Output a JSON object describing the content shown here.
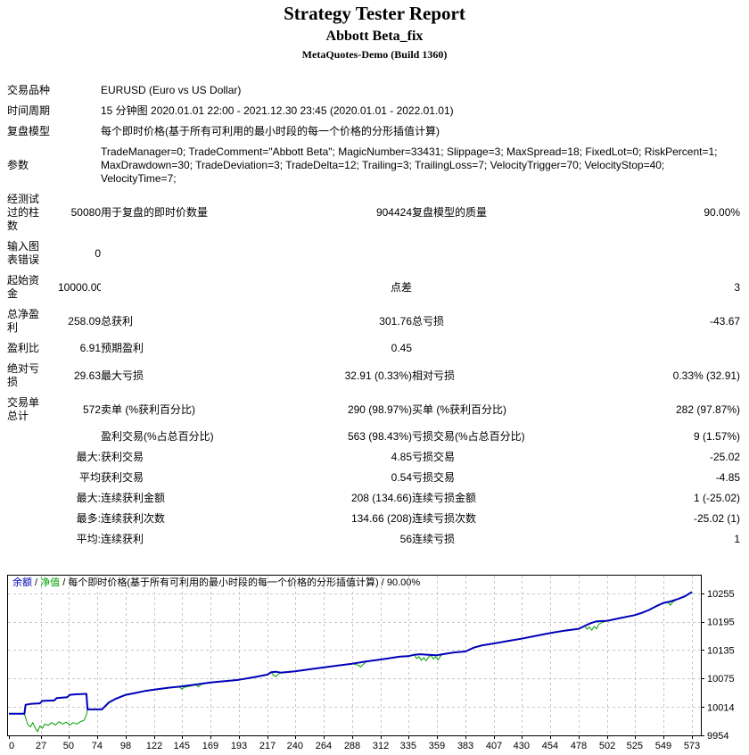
{
  "header": {
    "title": "Strategy Tester Report",
    "subtitle": "Abbott Beta_fix",
    "server": "MetaQuotes-Demo (Build 1360)"
  },
  "report": {
    "rows": [
      {
        "wide": true,
        "cells": [
          "交易品种",
          "",
          "EURUSD (Euro vs US Dollar)"
        ]
      },
      {
        "wide": true,
        "cells": [
          "时间周期",
          "",
          "15 分钟图 2020.01.01 22:00 - 2021.12.30 23:45 (2020.01.01 - 2022.01.01)"
        ]
      },
      {
        "wide": true,
        "cells": [
          "复盘模型",
          "",
          "每个即时价格(基于所有可利用的最小时段的每一个价格的分形插值计算)"
        ]
      },
      {
        "wide": true,
        "cells": [
          "参数",
          "",
          "TradeManager=0; TradeComment=\"Abbott Beta\"; MagicNumber=33431; Slippage=3; MaxSpread=18; FixedLot=0; RiskPercent=1; MaxDrawdown=30; TradeDeviation=3; TradeDelta=12; Trailing=3; TrailingLoss=7; VelocityTrigger=70; VelocityStop=40; VelocityTime=7;"
        ]
      },
      {
        "wide": false,
        "cells": [
          "经测试\n过的柱\n数",
          "50080",
          "用于复盘的即时价数量",
          "904424",
          "复盘模型的质量",
          "90.00%"
        ]
      },
      {
        "wide": false,
        "cells": [
          "输入图\n表错误",
          "0",
          "",
          "",
          "",
          ""
        ]
      },
      {
        "wide": false,
        "cells": [
          "起始资\n金",
          "10000.00",
          "",
          "点差",
          "",
          "3"
        ]
      },
      {
        "wide": false,
        "cells": [
          "总净盈\n利",
          "258.09",
          "总获利",
          "301.76",
          "总亏损",
          "-43.67"
        ]
      },
      {
        "wide": false,
        "cells": [
          "盈利比",
          "6.91",
          "预期盈利",
          "0.45",
          "",
          ""
        ]
      },
      {
        "wide": false,
        "cells": [
          "绝对亏\n损",
          "29.63",
          "最大亏损",
          "32.91 (0.33%)",
          "相对亏损",
          "0.33% (32.91)"
        ]
      },
      {
        "wide": false,
        "cells": [
          "交易单\n总计",
          "572",
          "卖单 (%获利百分比)",
          "290 (98.97%)",
          "买单 (%获利百分比)",
          "282 (97.87%)"
        ]
      },
      {
        "wide": false,
        "cells": [
          "",
          "",
          "盈利交易(%占总百分比)",
          "563 (98.43%)",
          "亏损交易(%占总百分比)",
          "9 (1.57%)"
        ]
      },
      {
        "wide": false,
        "cells": [
          "",
          "最大:",
          "获利交易",
          "4.85",
          "亏损交易",
          "-25.02"
        ]
      },
      {
        "wide": false,
        "cells": [
          "",
          "平均",
          "获利交易",
          "0.54",
          "亏损交易",
          "-4.85"
        ]
      },
      {
        "wide": false,
        "cells": [
          "",
          "最大:",
          "连续获利金额",
          "208 (134.66)",
          "连续亏损金额",
          "1 (-25.02)"
        ]
      },
      {
        "wide": false,
        "cells": [
          "",
          "最多:",
          "连续获利次数",
          "134.66 (208)",
          "连续亏损次数",
          "-25.02 (1)"
        ]
      },
      {
        "wide": false,
        "cells": [
          "",
          "平均:",
          "连续获利",
          "56",
          "连续亏损",
          "1"
        ]
      }
    ]
  },
  "chart_data": {
    "type": "line",
    "legend": {
      "balance_label": "余额",
      "equity_label": "净值",
      "model_label": "每个即时价格(基于所有可利用的最小时段的每一个价格的分形插值计算)",
      "quality": "90.00%",
      "separator": " / "
    },
    "xlabel": "",
    "ylabel": "",
    "x_ticks": [
      0,
      27,
      50,
      74,
      98,
      122,
      145,
      169,
      193,
      217,
      240,
      264,
      288,
      312,
      335,
      359,
      383,
      407,
      430,
      454,
      478,
      502,
      525,
      549,
      573
    ],
    "y_ticks": [
      10255,
      10195,
      10135,
      10075,
      10014,
      9954
    ],
    "xlim": [
      0,
      580
    ],
    "ylim": [
      9954,
      10295
    ],
    "grid": true,
    "colors": {
      "balance": "#0000B8",
      "equity": "#00A000",
      "grid": "#c8c8c8",
      "border": "#000000"
    },
    "series": [
      {
        "name": "equity",
        "label": "净值",
        "width": 1,
        "points": [
          [
            0,
            10000
          ],
          [
            13,
            10000
          ],
          [
            14,
            9991
          ],
          [
            16,
            9976
          ],
          [
            18,
            9972
          ],
          [
            20,
            9981
          ],
          [
            22,
            9970
          ],
          [
            24,
            9962
          ],
          [
            26,
            9974
          ],
          [
            28,
            9969
          ],
          [
            30,
            9978
          ],
          [
            33,
            9975
          ],
          [
            36,
            9981
          ],
          [
            39,
            9976
          ],
          [
            42,
            9983
          ],
          [
            45,
            9978
          ],
          [
            48,
            9982
          ],
          [
            51,
            9976
          ],
          [
            54,
            9981
          ],
          [
            57,
            9978
          ],
          [
            60,
            9983
          ],
          [
            63,
            9986
          ],
          [
            65,
            9997
          ],
          [
            66,
            10009
          ],
          [
            78,
            10009
          ],
          [
            80,
            10014
          ],
          [
            84,
            10024
          ],
          [
            90,
            10032
          ],
          [
            98,
            10040
          ],
          [
            106,
            10044
          ],
          [
            114,
            10048
          ],
          [
            122,
            10051
          ],
          [
            134,
            10055
          ],
          [
            143,
            10057
          ],
          [
            145,
            10052
          ],
          [
            147,
            10056
          ],
          [
            157,
            10061
          ],
          [
            159,
            10057
          ],
          [
            161,
            10062
          ],
          [
            169,
            10066
          ],
          [
            181,
            10069
          ],
          [
            193,
            10072
          ],
          [
            205,
            10077
          ],
          [
            217,
            10083
          ],
          [
            220,
            10088
          ],
          [
            222,
            10081
          ],
          [
            224,
            10079
          ],
          [
            226,
            10084
          ],
          [
            228,
            10087
          ],
          [
            240,
            10090
          ],
          [
            252,
            10094
          ],
          [
            264,
            10098
          ],
          [
            276,
            10102
          ],
          [
            288,
            10106
          ],
          [
            293,
            10103
          ],
          [
            295,
            10099
          ],
          [
            297,
            10104
          ],
          [
            300,
            10111
          ],
          [
            312,
            10115
          ],
          [
            320,
            10118
          ],
          [
            328,
            10121
          ],
          [
            335,
            10122
          ],
          [
            340,
            10125
          ],
          [
            342,
            10117
          ],
          [
            344,
            10121
          ],
          [
            346,
            10113
          ],
          [
            348,
            10119
          ],
          [
            350,
            10112
          ],
          [
            352,
            10120
          ],
          [
            354,
            10124
          ],
          [
            356,
            10116
          ],
          [
            358,
            10121
          ],
          [
            360,
            10114
          ],
          [
            362,
            10122
          ],
          [
            364,
            10126
          ],
          [
            366,
            10127
          ],
          [
            374,
            10130
          ],
          [
            383,
            10132
          ],
          [
            390,
            10140
          ],
          [
            397,
            10145
          ],
          [
            407,
            10149
          ],
          [
            418,
            10154
          ],
          [
            430,
            10159
          ],
          [
            442,
            10165
          ],
          [
            454,
            10171
          ],
          [
            466,
            10176
          ],
          [
            478,
            10180
          ],
          [
            483,
            10186
          ],
          [
            485,
            10179
          ],
          [
            487,
            10184
          ],
          [
            489,
            10177
          ],
          [
            491,
            10185
          ],
          [
            493,
            10180
          ],
          [
            495,
            10190
          ],
          [
            498,
            10194
          ],
          [
            502,
            10197
          ],
          [
            513,
            10203
          ],
          [
            525,
            10209
          ],
          [
            531,
            10214
          ],
          [
            537,
            10220
          ],
          [
            543,
            10228
          ],
          [
            549,
            10235
          ],
          [
            553,
            10236
          ],
          [
            555,
            10230
          ],
          [
            557,
            10237
          ],
          [
            561,
            10243
          ],
          [
            567,
            10249
          ],
          [
            573,
            10258
          ]
        ]
      },
      {
        "name": "balance",
        "label": "余额",
        "width": 2,
        "points": [
          [
            0,
            10000
          ],
          [
            13,
            10000
          ],
          [
            14,
            10019
          ],
          [
            19,
            10021
          ],
          [
            26,
            10022
          ],
          [
            28,
            10027
          ],
          [
            38,
            10028
          ],
          [
            40,
            10033
          ],
          [
            49,
            10035
          ],
          [
            51,
            10040
          ],
          [
            56,
            10041
          ],
          [
            65,
            10042
          ],
          [
            66,
            10009
          ],
          [
            78,
            10009
          ],
          [
            80,
            10014
          ],
          [
            84,
            10024
          ],
          [
            90,
            10032
          ],
          [
            98,
            10040
          ],
          [
            106,
            10044
          ],
          [
            114,
            10048
          ],
          [
            122,
            10051
          ],
          [
            134,
            10055
          ],
          [
            145,
            10058
          ],
          [
            157,
            10062
          ],
          [
            169,
            10066
          ],
          [
            181,
            10069
          ],
          [
            193,
            10072
          ],
          [
            205,
            10077
          ],
          [
            217,
            10083
          ],
          [
            220,
            10088
          ],
          [
            224,
            10089
          ],
          [
            228,
            10087
          ],
          [
            240,
            10090
          ],
          [
            252,
            10094
          ],
          [
            264,
            10098
          ],
          [
            276,
            10102
          ],
          [
            288,
            10106
          ],
          [
            300,
            10111
          ],
          [
            312,
            10115
          ],
          [
            320,
            10118
          ],
          [
            328,
            10121
          ],
          [
            335,
            10122
          ],
          [
            340,
            10125
          ],
          [
            345,
            10126
          ],
          [
            352,
            10125
          ],
          [
            359,
            10124
          ],
          [
            366,
            10127
          ],
          [
            374,
            10130
          ],
          [
            383,
            10132
          ],
          [
            390,
            10140
          ],
          [
            397,
            10145
          ],
          [
            407,
            10149
          ],
          [
            418,
            10154
          ],
          [
            430,
            10159
          ],
          [
            442,
            10165
          ],
          [
            454,
            10171
          ],
          [
            466,
            10176
          ],
          [
            478,
            10180
          ],
          [
            483,
            10186
          ],
          [
            488,
            10192
          ],
          [
            493,
            10196
          ],
          [
            502,
            10197
          ],
          [
            513,
            10203
          ],
          [
            525,
            10209
          ],
          [
            531,
            10214
          ],
          [
            537,
            10220
          ],
          [
            543,
            10228
          ],
          [
            549,
            10235
          ],
          [
            555,
            10238
          ],
          [
            561,
            10243
          ],
          [
            567,
            10249
          ],
          [
            573,
            10258
          ]
        ]
      }
    ]
  }
}
